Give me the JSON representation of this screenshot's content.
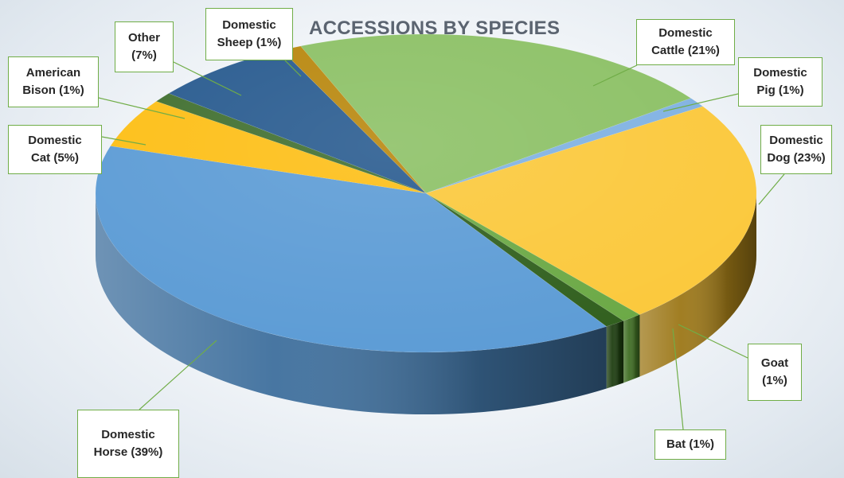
{
  "chart_data": {
    "type": "pie",
    "style": "3d",
    "title": "ACCESSIONS BY SPECIES",
    "slices": [
      {
        "label": "Domestic Cattle",
        "value": 21,
        "label_text": "Domestic\nCattle (21%)",
        "color": "#8bc064",
        "side": "#5b8a3c"
      },
      {
        "label": "Domestic Pig",
        "value": 1,
        "label_text": "Domestic\nPig (1%)",
        "color": "#7fb1e2",
        "side": "#4c7fae"
      },
      {
        "label": "Domestic Dog",
        "value": 23,
        "label_text": "Domestic\nDog (23%)",
        "color": "#fbc83a",
        "side": "#9c7717"
      },
      {
        "label": "Goat",
        "value": 1,
        "label_text": "Goat\n(1%)",
        "color": "#6aa844",
        "side": "#3f6d23"
      },
      {
        "label": "Bat",
        "value": 1,
        "label_text": "Bat (1%)",
        "color": "#2f5e1c",
        "side": "#1d3d10"
      },
      {
        "label": "Domestic Horse",
        "value": 39,
        "label_text": "Domestic\nHorse (39%)",
        "color": "#5b9bd5",
        "side": "#3e6f9d"
      },
      {
        "label": "Domestic Cat",
        "value": 5,
        "label_text": "Domestic\nCat (5%)",
        "color": "#fdbe14",
        "side": "#b68608"
      },
      {
        "label": "American Bison",
        "value": 1,
        "label_text": "American\nBison (1%)",
        "color": "#3f6e2e",
        "side": "#2a4a1e"
      },
      {
        "label": "Other",
        "value": 7,
        "label_text": "Other\n(7%)",
        "color": "#26598e",
        "side": "#173a5e"
      },
      {
        "label": "Domestic Sheep",
        "value": 1,
        "label_text": "Domestic\nSheep (1%)",
        "color": "#b8860b",
        "side": "#7a5a08"
      }
    ],
    "data_labels": "callouts",
    "legend": "none"
  }
}
